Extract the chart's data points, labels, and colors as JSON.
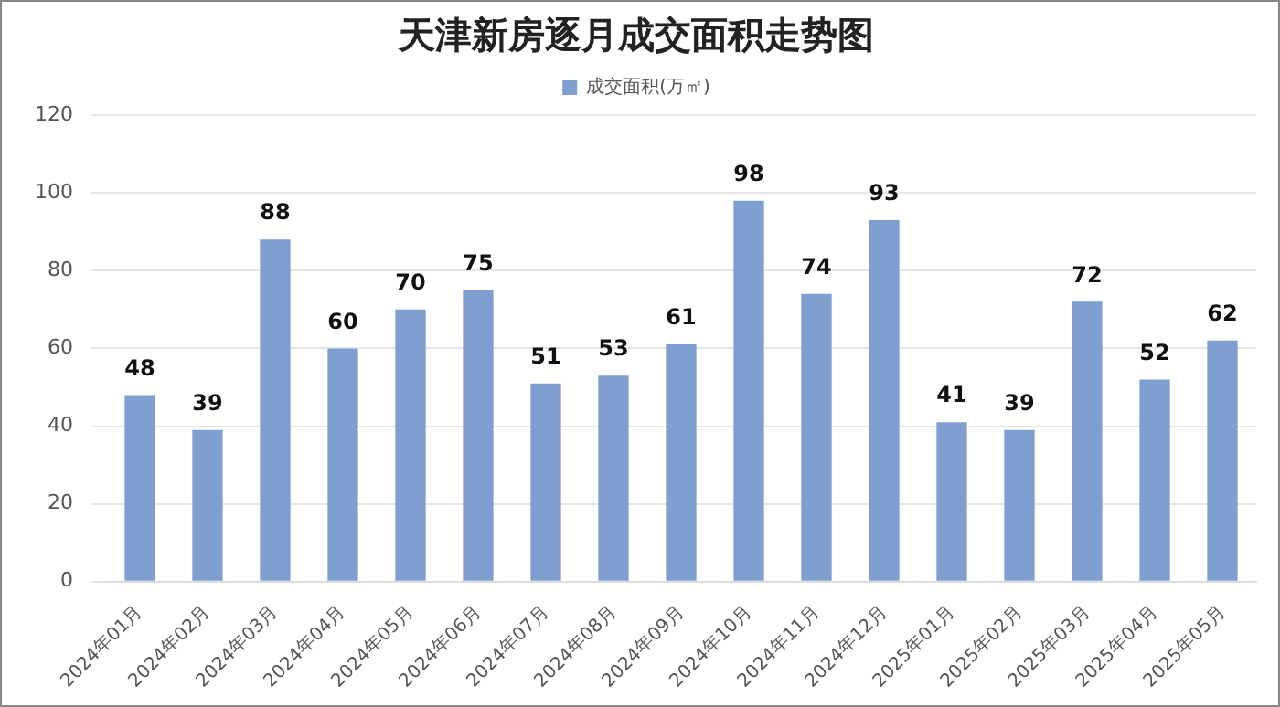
{
  "chart_data": {
    "type": "bar",
    "title": "天津新房逐月成交面积走势图",
    "categories": [
      "2024年01月",
      "2024年02月",
      "2024年03月",
      "2024年04月",
      "2024年05月",
      "2024年06月",
      "2024年07月",
      "2024年08月",
      "2024年09月",
      "2024年10月",
      "2024年11月",
      "2024年12月",
      "2025年01月",
      "2025年02月",
      "2025年03月",
      "2025年04月",
      "2025年05月"
    ],
    "series": [
      {
        "name": "成交面积(万㎡)",
        "color": "#7f9fd1",
        "values": [
          48,
          39,
          88,
          60,
          70,
          75,
          51,
          53,
          61,
          98,
          74,
          93,
          41,
          39,
          72,
          52,
          62
        ]
      }
    ],
    "ylim": [
      0,
      120
    ],
    "yticks": [
      0,
      20,
      40,
      60,
      80,
      100,
      120
    ],
    "grid": "y",
    "legend": "top",
    "data_labels": true
  }
}
